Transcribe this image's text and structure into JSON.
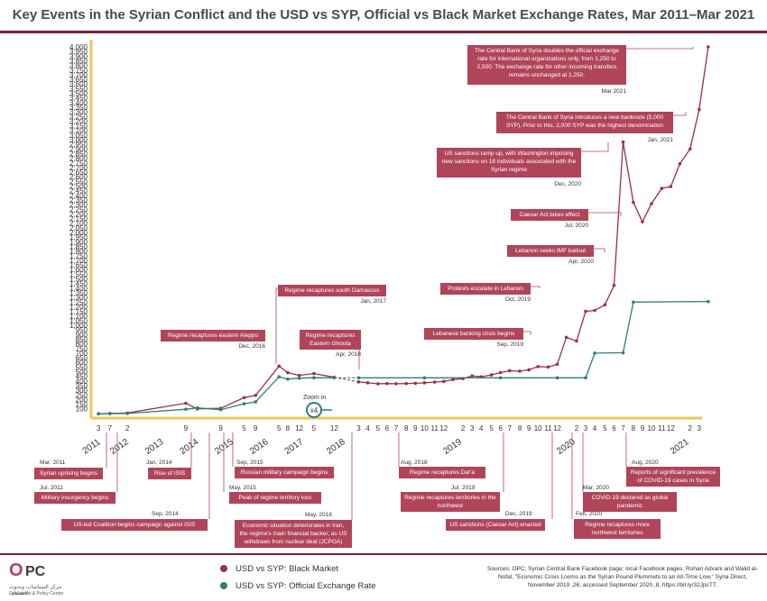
{
  "title": "Key Events in the Syrian Conflict and the USD vs SYP, Official vs Black Market Exchange Rates, Mar 2011–Mar 2021",
  "legend": {
    "black": "USD vs SYP: Black Market",
    "official": "USD vs SYP: Official Exchange Rate"
  },
  "sources": "Sources: OPC; Syrian Central Bank Facebook page; local Facebook pages; Rohan Advani and Walid al-Nofal, \"Economic Crisis Looms as the Syrian Pound Plummets to an All-Time Low,\" Syria Direct, November 2019 ,26, accessed September 2020 ,8, https://bit.ly/32JpcTT.",
  "logo": {
    "mark": "O",
    "pc": "PC",
    "arabic": "مركز السياسات وبحوث العمليات",
    "english": "Operations & Policy Center"
  },
  "zoom_label": "Zoom in",
  "zoom_factor": "x4",
  "colors": {
    "black_market": "#9c3148",
    "official": "#2f7d7b",
    "box": "#b0455a",
    "axis": "#e8c85a"
  },
  "chart_data": {
    "type": "line",
    "title": "Key Events in the Syrian Conflict and the USD vs SYP, Official vs Black Market Exchange Rates, Mar 2011–Mar 2021",
    "y_ticks": [
      100,
      150,
      200,
      250,
      300,
      350,
      400,
      450,
      500,
      550,
      600,
      650,
      700,
      750,
      800,
      850,
      900,
      950,
      1000,
      1050,
      1100,
      1150,
      1200,
      1250,
      1300,
      1350,
      1400,
      1450,
      1500,
      1550,
      1600,
      1650,
      1700,
      1750,
      1800,
      1850,
      1900,
      1950,
      2000,
      2050,
      2100,
      2150,
      2200,
      2250,
      2300,
      2350,
      2400,
      2450,
      2500,
      2550,
      2600,
      2650,
      2700,
      2750,
      2800,
      2850,
      2900,
      2950,
      3000,
      3050,
      3100,
      3150,
      3200,
      3250,
      3300,
      3350,
      3400,
      3450,
      3500,
      3550,
      3600,
      3650,
      3700,
      3750,
      3800,
      3850,
      3900,
      3950,
      4000
    ],
    "ylim": [
      0,
      4000
    ],
    "zoom_note": "Zoom in x4 from Jan 2018",
    "x_tick_labels": [
      {
        "t": 2011.21,
        "label": "3"
      },
      {
        "t": 2011.54,
        "label": "7"
      },
      {
        "t": 2012.04,
        "label": "2"
      },
      {
        "t": 2013.71,
        "label": "9"
      },
      {
        "t": 2014.71,
        "label": "9"
      },
      {
        "t": 2015.38,
        "label": "5"
      },
      {
        "t": 2015.71,
        "label": "9"
      },
      {
        "t": 2016.38,
        "label": "5"
      },
      {
        "t": 2016.63,
        "label": "8"
      },
      {
        "t": 2016.96,
        "label": "12"
      },
      {
        "t": 2017.38,
        "label": "5"
      },
      {
        "t": 2017.96,
        "label": "12"
      },
      {
        "t": 2018.21,
        "label": "3"
      },
      {
        "t": 2018.29,
        "label": "4"
      },
      {
        "t": 2018.38,
        "label": "5"
      },
      {
        "t": 2018.46,
        "label": "6"
      },
      {
        "t": 2018.54,
        "label": "7"
      },
      {
        "t": 2018.63,
        "label": "8"
      },
      {
        "t": 2018.71,
        "label": "9"
      },
      {
        "t": 2018.79,
        "label": "10"
      },
      {
        "t": 2018.88,
        "label": "11"
      },
      {
        "t": 2018.96,
        "label": "12"
      },
      {
        "t": 2019.13,
        "label": "2"
      },
      {
        "t": 2019.21,
        "label": "3"
      },
      {
        "t": 2019.29,
        "label": "4"
      },
      {
        "t": 2019.38,
        "label": "5"
      },
      {
        "t": 2019.46,
        "label": "6"
      },
      {
        "t": 2019.54,
        "label": "7"
      },
      {
        "t": 2019.63,
        "label": "8"
      },
      {
        "t": 2019.71,
        "label": "9"
      },
      {
        "t": 2019.79,
        "label": "10"
      },
      {
        "t": 2019.88,
        "label": "11"
      },
      {
        "t": 2019.96,
        "label": "12"
      },
      {
        "t": 2020.13,
        "label": "2"
      },
      {
        "t": 2020.21,
        "label": "3"
      },
      {
        "t": 2020.29,
        "label": "4"
      },
      {
        "t": 2020.38,
        "label": "5"
      },
      {
        "t": 2020.46,
        "label": "6"
      },
      {
        "t": 2020.54,
        "label": "7"
      },
      {
        "t": 2020.63,
        "label": "8"
      },
      {
        "t": 2020.71,
        "label": "9"
      },
      {
        "t": 2020.79,
        "label": "10"
      },
      {
        "t": 2020.88,
        "label": "11"
      },
      {
        "t": 2020.96,
        "label": "12"
      },
      {
        "t": 2021.13,
        "label": "2"
      },
      {
        "t": 2021.21,
        "label": "3"
      }
    ],
    "year_labels": [
      "2011",
      "2012",
      "2013",
      "2014",
      "2015",
      "2016",
      "2017",
      "2018",
      "2019",
      "2020",
      "2021"
    ],
    "series": [
      {
        "name": "USD vs SYP: Black Market",
        "points": [
          {
            "t": 2011.21,
            "y": 47
          },
          {
            "t": 2011.54,
            "y": 50
          },
          {
            "t": 2012.04,
            "y": 55
          },
          {
            "t": 2013.71,
            "y": 160
          },
          {
            "t": 2014.04,
            "y": 100
          },
          {
            "t": 2014.71,
            "y": 105
          },
          {
            "t": 2015.38,
            "y": 220
          },
          {
            "t": 2015.71,
            "y": 245
          },
          {
            "t": 2016.38,
            "y": 560
          },
          {
            "t": 2016.63,
            "y": 490
          },
          {
            "t": 2016.96,
            "y": 460
          },
          {
            "t": 2017.38,
            "y": 480
          },
          {
            "t": 2017.96,
            "y": 440
          },
          {
            "t": 2018.21,
            "y": 390
          },
          {
            "t": 2018.29,
            "y": 380
          },
          {
            "t": 2018.38,
            "y": 370
          },
          {
            "t": 2018.46,
            "y": 372
          },
          {
            "t": 2018.54,
            "y": 370
          },
          {
            "t": 2018.63,
            "y": 372
          },
          {
            "t": 2018.71,
            "y": 375
          },
          {
            "t": 2018.79,
            "y": 380
          },
          {
            "t": 2018.88,
            "y": 388
          },
          {
            "t": 2018.96,
            "y": 395
          },
          {
            "t": 2019.04,
            "y": 415
          },
          {
            "t": 2019.13,
            "y": 425
          },
          {
            "t": 2019.21,
            "y": 455
          },
          {
            "t": 2019.29,
            "y": 445
          },
          {
            "t": 2019.38,
            "y": 465
          },
          {
            "t": 2019.46,
            "y": 490
          },
          {
            "t": 2019.54,
            "y": 510
          },
          {
            "t": 2019.63,
            "y": 505
          },
          {
            "t": 2019.71,
            "y": 520
          },
          {
            "t": 2019.79,
            "y": 555
          },
          {
            "t": 2019.88,
            "y": 550
          },
          {
            "t": 2019.96,
            "y": 580
          },
          {
            "t": 2020.04,
            "y": 870
          },
          {
            "t": 2020.13,
            "y": 830
          },
          {
            "t": 2020.21,
            "y": 1150
          },
          {
            "t": 2020.29,
            "y": 1160
          },
          {
            "t": 2020.38,
            "y": 1220
          },
          {
            "t": 2020.46,
            "y": 1430
          },
          {
            "t": 2020.54,
            "y": 2975
          },
          {
            "t": 2020.63,
            "y": 2325
          },
          {
            "t": 2020.71,
            "y": 2115
          },
          {
            "t": 2020.79,
            "y": 2310
          },
          {
            "t": 2020.88,
            "y": 2475
          },
          {
            "t": 2020.96,
            "y": 2495
          },
          {
            "t": 2021.04,
            "y": 2740
          },
          {
            "t": 2021.13,
            "y": 2900
          },
          {
            "t": 2021.21,
            "y": 3325
          },
          {
            "t": 2021.29,
            "y": 4000
          }
        ]
      },
      {
        "name": "USD vs SYP: Official Exchange Rate",
        "points": [
          {
            "t": 2011.21,
            "y": 47
          },
          {
            "t": 2011.54,
            "y": 48
          },
          {
            "t": 2012.04,
            "y": 50
          },
          {
            "t": 2013.71,
            "y": 95
          },
          {
            "t": 2014.04,
            "y": 110
          },
          {
            "t": 2014.71,
            "y": 90
          },
          {
            "t": 2015.38,
            "y": 155
          },
          {
            "t": 2015.71,
            "y": 175
          },
          {
            "t": 2016.38,
            "y": 445
          },
          {
            "t": 2016.63,
            "y": 420
          },
          {
            "t": 2016.96,
            "y": 430
          },
          {
            "t": 2017.38,
            "y": 435
          },
          {
            "t": 2017.96,
            "y": 434
          },
          {
            "t": 2018.21,
            "y": 434
          },
          {
            "t": 2018.79,
            "y": 434
          },
          {
            "t": 2019.46,
            "y": 434
          },
          {
            "t": 2019.96,
            "y": 434
          },
          {
            "t": 2020.21,
            "y": 434
          },
          {
            "t": 2020.29,
            "y": 700
          },
          {
            "t": 2020.54,
            "y": 704
          },
          {
            "t": 2020.63,
            "y": 1250
          },
          {
            "t": 2021.29,
            "y": 1256
          }
        ]
      }
    ]
  },
  "events_top": [
    {
      "text": "The Central Bank of Syria doubles the official exchange rate for international organizations only, from 1,250 to 2,500. The exchange rate for other incoming transfers remains unchanged at 1,250.",
      "date": "Mar 2021"
    },
    {
      "text": "The Central Bank of Syria introduces a new banknote (5,000 SYP). Prior to this, 2,000 SYP was the highest denomination",
      "date": "Jan, 2021"
    },
    {
      "text": "US sanctions ramp up, with Washington imposing new sanctions on 18 individuals associated with the Syrian regime",
      "date": "Dec, 2020"
    },
    {
      "text": "Caesar Act takes effect",
      "date": "Jul, 2020"
    },
    {
      "text": "Lebanon seeks IMF bailout",
      "date": "Apr, 2020"
    },
    {
      "text": "Protests escalate in Lebanon",
      "date": "Oct, 2019"
    },
    {
      "text": "Lebanese banking crisis begins",
      "date": "Sep, 2019"
    },
    {
      "text": "Regime recaptures south Damascus",
      "date": "Jan, 2017"
    },
    {
      "text": "Regime recaptures eastern Aleppo",
      "date": "Dec, 2016"
    },
    {
      "text": "Regime recaptures Eastern Ghouta",
      "date": "Apr, 2018"
    }
  ],
  "events_bottom": [
    {
      "text": "Syrian uprising begins",
      "date": "Mar, 2011"
    },
    {
      "text": "Military insurgency begins",
      "date": "Jul, 2011"
    },
    {
      "text": "US-led Coalition begins campaign against ISIS",
      "date": "Sep, 2014"
    },
    {
      "text": "Rise of ISIS",
      "date": "Jan, 2014"
    },
    {
      "text": "Russian military campaign begins",
      "date": "Sep, 2015"
    },
    {
      "text": "Peak of regime territory loss",
      "date": "May, 2015"
    },
    {
      "text": "Economic situation deteriorates in Iran, the regime's main financial backer, as US withdraws from nuclear deal (JCPOA)",
      "date": "May, 2018"
    },
    {
      "text": "Regime recaptures Dar'a",
      "date": "Aug, 2018"
    },
    {
      "text": "Regime recaptures territories in the northwest",
      "date": "Jul, 2019"
    },
    {
      "text": "US sanctions (Caesar Act) enacted",
      "date": "Dec, 2019"
    },
    {
      "text": "Regime recaptures more northwest territories",
      "date": "Feb, 2020"
    },
    {
      "text": "COVID-19 declared as global pandemic",
      "date": "Mar, 2020"
    },
    {
      "text": "Reports of significant prevalence of COVID-19 cases in Syria",
      "date": "Aug, 2020"
    }
  ]
}
